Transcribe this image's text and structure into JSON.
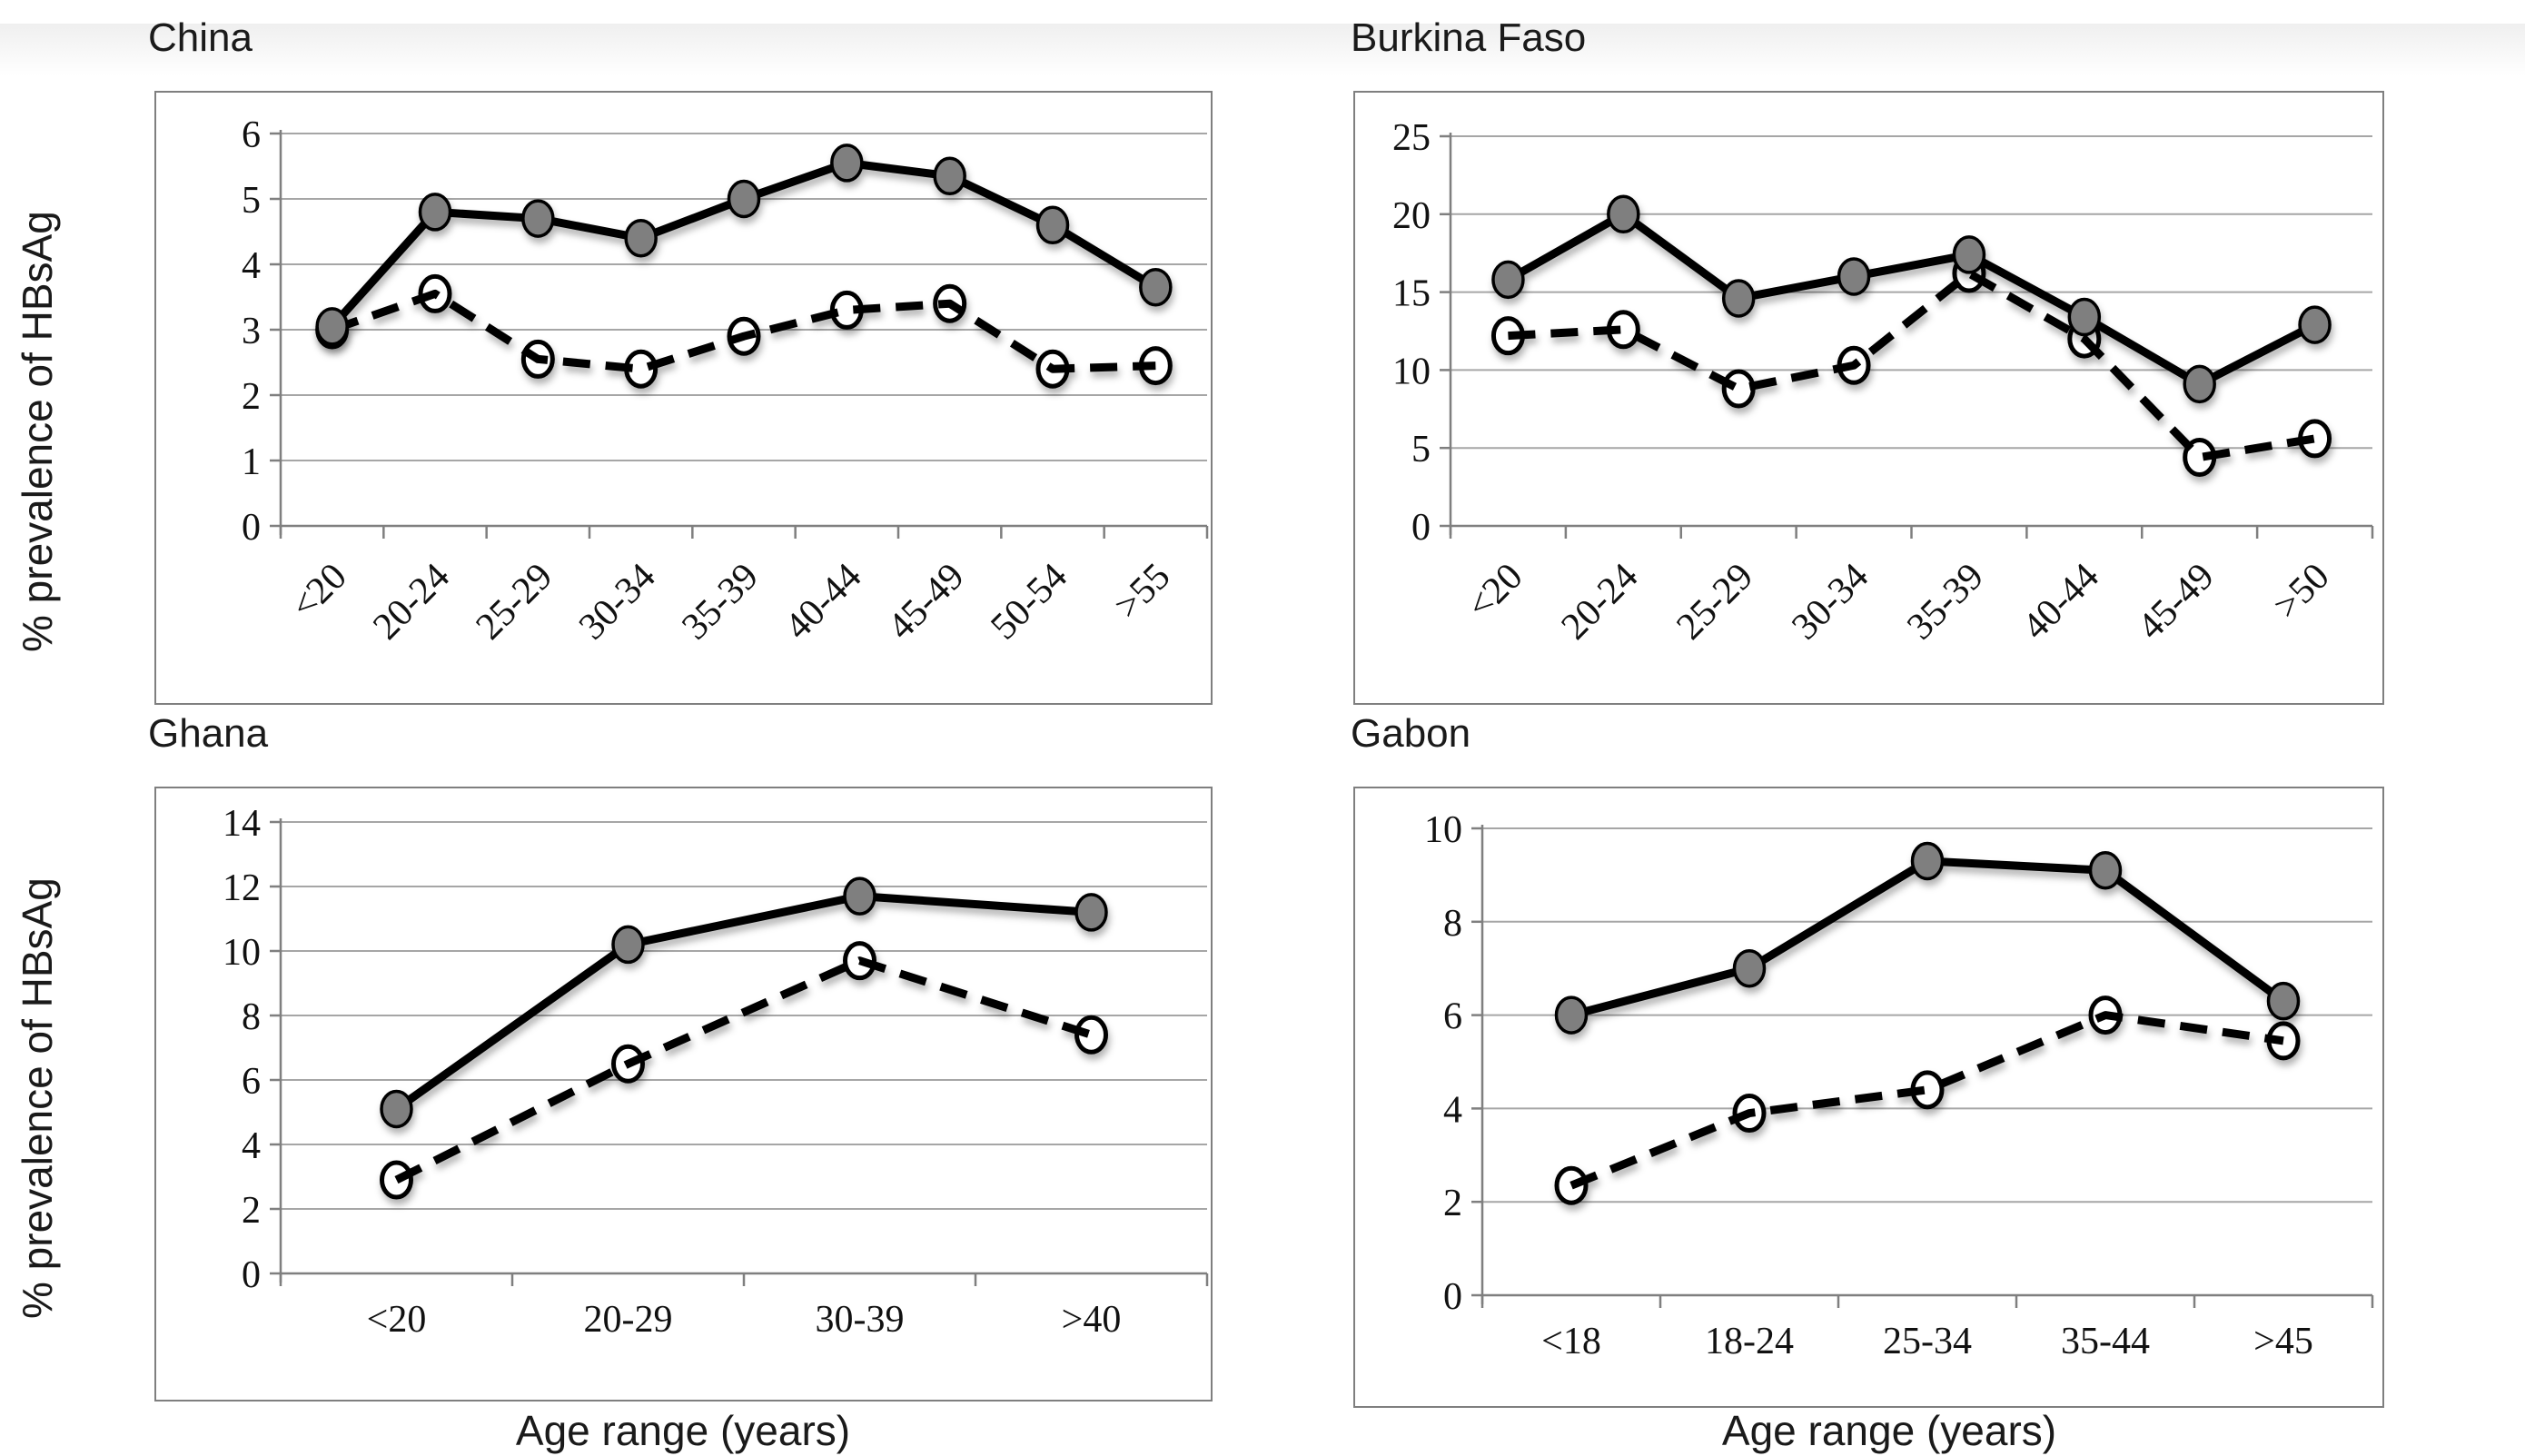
{
  "figure": {
    "y_axis_label": "% prevalence of HBsAg",
    "x_axis_label": "Age range  (years)"
  },
  "colors": {
    "solid_line": "#000000",
    "filled_marker_fill": "#7f7f7f",
    "open_marker_fill": "#ffffff",
    "marker_stroke": "#000000",
    "gridline": "#a6a6a6",
    "axis": "#7f7f7f",
    "text": "#1a1a1a"
  },
  "chart_data": [
    {
      "type": "line",
      "title": "China",
      "ylabel": "% prevalence of HBsAg",
      "categories": [
        "<20",
        "20-24",
        "25-29",
        "30-34",
        "35-39",
        "40-44",
        "45-49",
        "50-54",
        ">55"
      ],
      "ylim": [
        0,
        6
      ],
      "ytick_step": 1,
      "yticks": [
        0,
        1,
        2,
        3,
        4,
        5,
        6
      ],
      "grid": true,
      "legend": "none",
      "x_tick_rotation": -45,
      "series": [
        {
          "name": "solid-filled-gray",
          "line": "solid",
          "marker": "filled-gray",
          "values": [
            3.05,
            4.8,
            4.7,
            4.4,
            5.0,
            5.55,
            5.35,
            4.6,
            3.65
          ]
        },
        {
          "name": "dashed-open-white",
          "line": "dashed",
          "marker": "open-white",
          "values": [
            3.0,
            3.55,
            2.55,
            2.4,
            2.9,
            3.3,
            3.4,
            2.4,
            2.45
          ]
        }
      ]
    },
    {
      "type": "line",
      "title": "Burkina Faso",
      "categories": [
        "<20",
        "20-24",
        "25-29",
        "30-34",
        "35-39",
        "40-44",
        "45-49",
        ">50"
      ],
      "ylim": [
        0,
        25
      ],
      "ytick_step": 5,
      "yticks": [
        0,
        5,
        10,
        15,
        20,
        25
      ],
      "grid": true,
      "legend": "none",
      "x_tick_rotation": -45,
      "series": [
        {
          "name": "solid-filled-gray",
          "line": "solid",
          "marker": "filled-gray",
          "values": [
            15.8,
            20.0,
            14.6,
            16.0,
            17.4,
            13.4,
            9.1,
            12.9
          ]
        },
        {
          "name": "dashed-open-white",
          "line": "dashed",
          "marker": "open-white",
          "values": [
            12.2,
            12.6,
            8.8,
            10.3,
            16.2,
            12.0,
            4.4,
            5.6
          ]
        }
      ]
    },
    {
      "type": "line",
      "title": "Ghana",
      "ylabel": "% prevalence of HBsAg",
      "xlabel": "Age range  (years)",
      "categories": [
        "<20",
        "20-29",
        "30-39",
        ">40"
      ],
      "ylim": [
        0,
        14
      ],
      "ytick_step": 2,
      "yticks": [
        0,
        2,
        4,
        6,
        8,
        10,
        12,
        14
      ],
      "grid": true,
      "legend": "none",
      "x_tick_rotation": 0,
      "series": [
        {
          "name": "solid-filled-gray",
          "line": "solid",
          "marker": "filled-gray",
          "values": [
            5.1,
            10.2,
            11.7,
            11.2
          ]
        },
        {
          "name": "dashed-open-white",
          "line": "dashed",
          "marker": "open-white",
          "values": [
            2.9,
            6.5,
            9.7,
            7.4
          ]
        }
      ]
    },
    {
      "type": "line",
      "title": "Gabon",
      "xlabel": "Age range  (years)",
      "categories": [
        "<18",
        "18-24",
        "25-34",
        "35-44",
        ">45"
      ],
      "ylim": [
        0,
        10
      ],
      "ytick_step": 2,
      "yticks": [
        0,
        2,
        4,
        6,
        8,
        10
      ],
      "grid": true,
      "legend": "none",
      "x_tick_rotation": 0,
      "series": [
        {
          "name": "solid-filled-gray",
          "line": "solid",
          "marker": "filled-gray",
          "values": [
            6.0,
            7.0,
            9.3,
            9.1,
            6.3
          ]
        },
        {
          "name": "dashed-open-white",
          "line": "dashed",
          "marker": "open-white",
          "values": [
            2.35,
            3.9,
            4.4,
            6.0,
            5.45
          ]
        }
      ]
    }
  ]
}
